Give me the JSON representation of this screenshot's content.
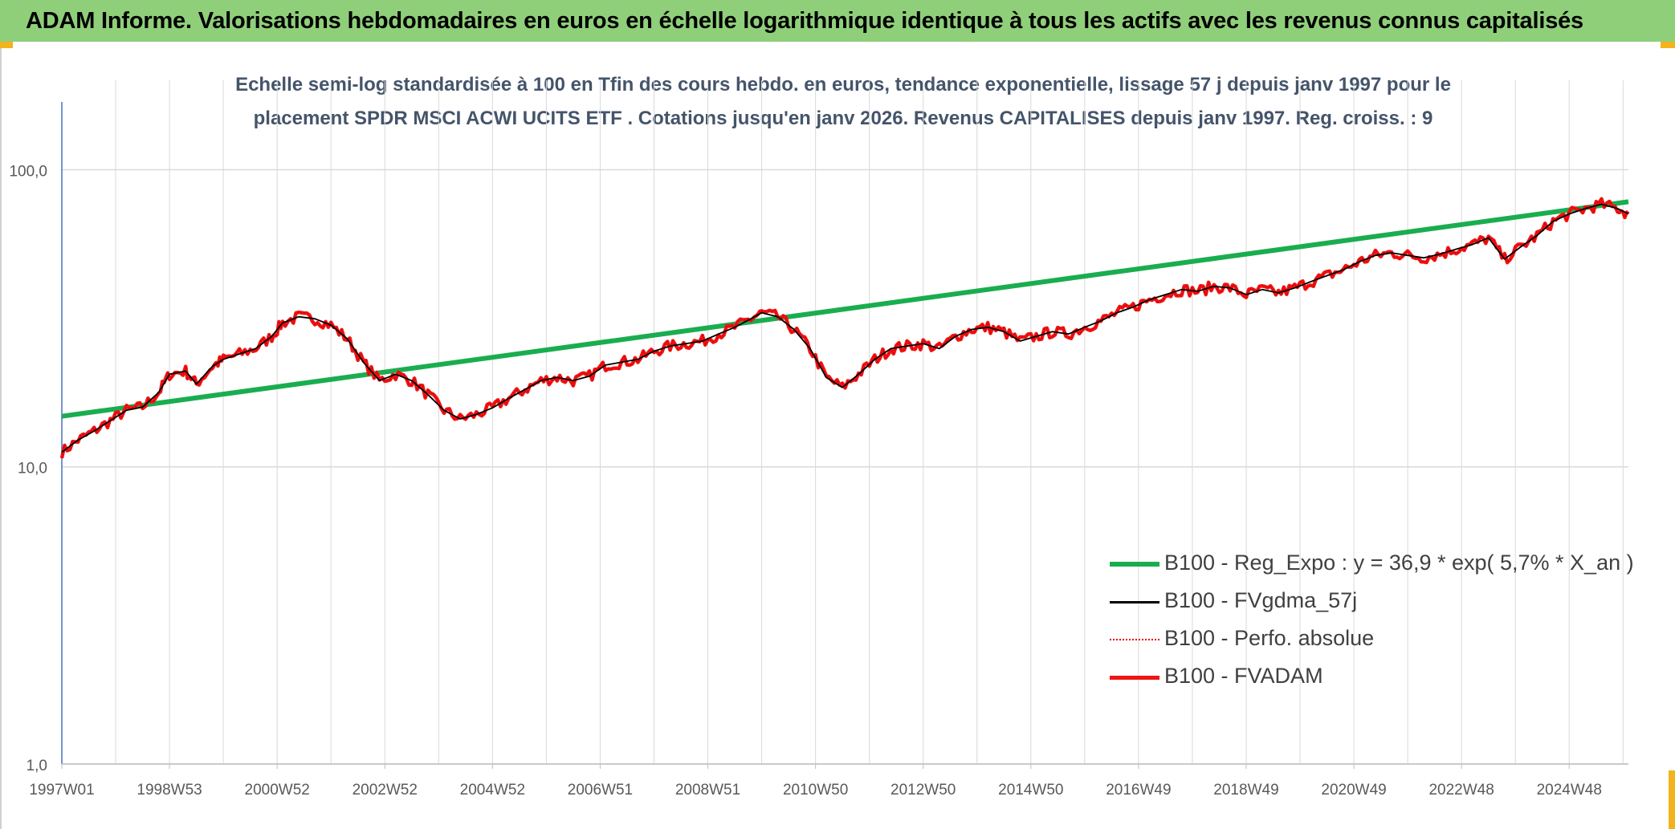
{
  "header": {
    "title": "ADAM Informe. Valorisations hebdomadaires en euros en échelle logarithmique identique à tous les actifs avec les revenus connus capitalisés"
  },
  "colors": {
    "banner": "#8fcf7a",
    "accent_corner": "#f2b31c",
    "reg_expo": "#1aad4f",
    "fvgdma": "#000000",
    "perfo": "#e00000",
    "fvadam": "#f01414",
    "title_text": "#44546a",
    "axis_line": "#4472c4",
    "grid": "#d9d9d9"
  },
  "chart_data": {
    "type": "line",
    "title_line1": "Echelle semi-log standardisée à 100 en Tfin des cours hebdo. en euros, tendance exponentielle, lissage 57 j depuis janv 1997 pour le",
    "title_line2": "placement SPDR MSCI ACWI UCITS ETF . Cotations jusqu'en janv 2026. Revenus CAPITALISES depuis janv 1997. Reg. croiss. : 9",
    "y_scale": "log",
    "ylim": [
      1,
      200
    ],
    "y_ticks": [
      {
        "value": 1,
        "label": "1,0"
      },
      {
        "value": 10,
        "label": "10,0"
      },
      {
        "value": 100,
        "label": "100,0"
      }
    ],
    "xlim": [
      1997.0,
      2026.1
    ],
    "x_ticks": [
      {
        "value": 1997.0,
        "label": "1997W01"
      },
      {
        "value": 1999.0,
        "label": "1998W53"
      },
      {
        "value": 2001.0,
        "label": "2000W52"
      },
      {
        "value": 2003.0,
        "label": "2002W52"
      },
      {
        "value": 2005.0,
        "label": "2004W52"
      },
      {
        "value": 2007.0,
        "label": "2006W51"
      },
      {
        "value": 2009.0,
        "label": "2008W51"
      },
      {
        "value": 2011.0,
        "label": "2010W50"
      },
      {
        "value": 2013.0,
        "label": "2012W50"
      },
      {
        "value": 2015.0,
        "label": "2014W50"
      },
      {
        "value": 2017.0,
        "label": "2016W49"
      },
      {
        "value": 2019.0,
        "label": "2018W49"
      },
      {
        "value": 2021.0,
        "label": "2020W49"
      },
      {
        "value": 2023.0,
        "label": "2022W48"
      },
      {
        "value": 2025.0,
        "label": "2024W48"
      }
    ],
    "grid": true,
    "legend_position": "bottom-right",
    "series": [
      {
        "name": "B100 - Reg_Expo : y = 36,9 * exp( 5,7% *  X_an )",
        "style": "solid-thick",
        "points": [
          [
            1997.0,
            14.8
          ],
          [
            2026.1,
            78.0
          ]
        ]
      },
      {
        "name": "B100 - FVgdma_57j",
        "style": "solid-thin",
        "points": [
          [
            1997.0,
            11.2
          ],
          [
            1997.3,
            12.3
          ],
          [
            1997.6,
            13.2
          ],
          [
            1997.9,
            14.3
          ],
          [
            1998.2,
            15.5
          ],
          [
            1998.5,
            15.9
          ],
          [
            1998.8,
            17.8
          ],
          [
            1999.0,
            20.5
          ],
          [
            1999.3,
            21.0
          ],
          [
            1999.5,
            19.0
          ],
          [
            1999.8,
            21.8
          ],
          [
            2000.0,
            23.0
          ],
          [
            2000.3,
            24.0
          ],
          [
            2000.6,
            25.0
          ],
          [
            2000.9,
            27.5
          ],
          [
            2001.1,
            30.5
          ],
          [
            2001.4,
            32.0
          ],
          [
            2001.7,
            31.5
          ],
          [
            2002.0,
            30.0
          ],
          [
            2002.3,
            27.0
          ],
          [
            2002.6,
            22.5
          ],
          [
            2002.9,
            19.5
          ],
          [
            2003.2,
            20.5
          ],
          [
            2003.5,
            19.5
          ],
          [
            2003.8,
            17.5
          ],
          [
            2004.1,
            15.5
          ],
          [
            2004.4,
            14.5
          ],
          [
            2004.7,
            15.0
          ],
          [
            2005.0,
            15.8
          ],
          [
            2005.3,
            17.0
          ],
          [
            2005.6,
            18.2
          ],
          [
            2005.9,
            19.5
          ],
          [
            2006.2,
            20.0
          ],
          [
            2006.5,
            19.5
          ],
          [
            2006.8,
            20.2
          ],
          [
            2007.1,
            22.0
          ],
          [
            2007.4,
            22.5
          ],
          [
            2007.7,
            23.0
          ],
          [
            2008.0,
            24.5
          ],
          [
            2008.3,
            25.5
          ],
          [
            2008.6,
            26.0
          ],
          [
            2008.9,
            26.5
          ],
          [
            2009.2,
            28.0
          ],
          [
            2009.5,
            29.5
          ],
          [
            2009.8,
            31.5
          ],
          [
            2010.0,
            33.0
          ],
          [
            2010.3,
            32.0
          ],
          [
            2010.6,
            29.0
          ],
          [
            2010.9,
            25.0
          ],
          [
            2011.2,
            20.0
          ],
          [
            2011.5,
            18.5
          ],
          [
            2011.8,
            20.5
          ],
          [
            2012.1,
            23.0
          ],
          [
            2012.4,
            25.0
          ],
          [
            2012.7,
            25.5
          ],
          [
            2013.0,
            26.0
          ],
          [
            2013.3,
            25.0
          ],
          [
            2013.6,
            27.5
          ],
          [
            2013.9,
            29.0
          ],
          [
            2014.2,
            29.5
          ],
          [
            2014.5,
            28.5
          ],
          [
            2014.8,
            26.5
          ],
          [
            2015.1,
            27.5
          ],
          [
            2015.4,
            28.5
          ],
          [
            2015.7,
            28.0
          ],
          [
            2016.0,
            29.5
          ],
          [
            2016.3,
            31.0
          ],
          [
            2016.6,
            33.0
          ],
          [
            2016.9,
            34.5
          ],
          [
            2017.2,
            36.5
          ],
          [
            2017.5,
            38.0
          ],
          [
            2017.8,
            39.5
          ],
          [
            2018.1,
            39.0
          ],
          [
            2018.4,
            40.5
          ],
          [
            2018.7,
            40.0
          ],
          [
            2019.0,
            38.0
          ],
          [
            2019.3,
            39.5
          ],
          [
            2019.6,
            38.5
          ],
          [
            2019.9,
            40.0
          ],
          [
            2020.2,
            42.0
          ],
          [
            2020.5,
            44.0
          ],
          [
            2020.8,
            46.0
          ],
          [
            2021.1,
            49.0
          ],
          [
            2021.4,
            51.5
          ],
          [
            2021.7,
            52.5
          ],
          [
            2022.0,
            51.5
          ],
          [
            2022.3,
            50.5
          ],
          [
            2022.6,
            52.0
          ],
          [
            2022.9,
            54.0
          ],
          [
            2023.2,
            56.0
          ],
          [
            2023.5,
            59.0
          ],
          [
            2023.8,
            50.0
          ],
          [
            2024.1,
            55.0
          ],
          [
            2024.4,
            60.0
          ],
          [
            2024.7,
            67.0
          ],
          [
            2025.0,
            71.0
          ],
          [
            2025.3,
            74.0
          ],
          [
            2025.6,
            76.5
          ],
          [
            2025.9,
            74.0
          ],
          [
            2026.1,
            71.0
          ]
        ]
      },
      {
        "name": "B100 - Perfo. absolue",
        "style": "dotted",
        "points": []
      },
      {
        "name": "B100 - FVADAM",
        "style": "solid-medium",
        "points": []
      }
    ]
  }
}
